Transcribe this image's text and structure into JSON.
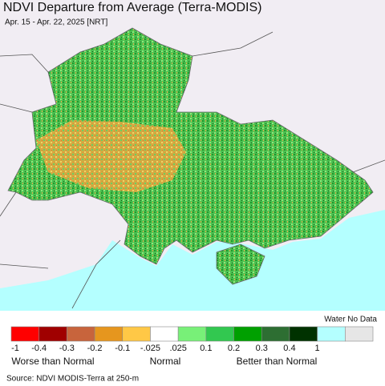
{
  "header": {
    "title": "NDVI Departure from Average (Terra-MODIS)",
    "subtitle": "Apr. 15 - Apr. 22, 2025 [NRT]"
  },
  "legend": {
    "extra_label": "Water No Data",
    "colors": [
      "#ff0000",
      "#a00000",
      "#c8643c",
      "#e6961e",
      "#ffc846",
      "#ffffff",
      "#78f078",
      "#32c850",
      "#00a000",
      "#2d6e32",
      "#003200",
      "#b4ffff",
      "#e6e6e6"
    ],
    "ticks": [
      "-1",
      "-0.4",
      "-0.3",
      "-0.2",
      "-0.1",
      "-.025",
      ".025",
      "0.1",
      "0.2",
      "0.3",
      "0.4",
      "1"
    ],
    "captions": [
      "Worse than Normal",
      "Normal",
      "Better than Normal"
    ]
  },
  "source": "Source: NDVI MODIS-Terra at 250-m"
}
